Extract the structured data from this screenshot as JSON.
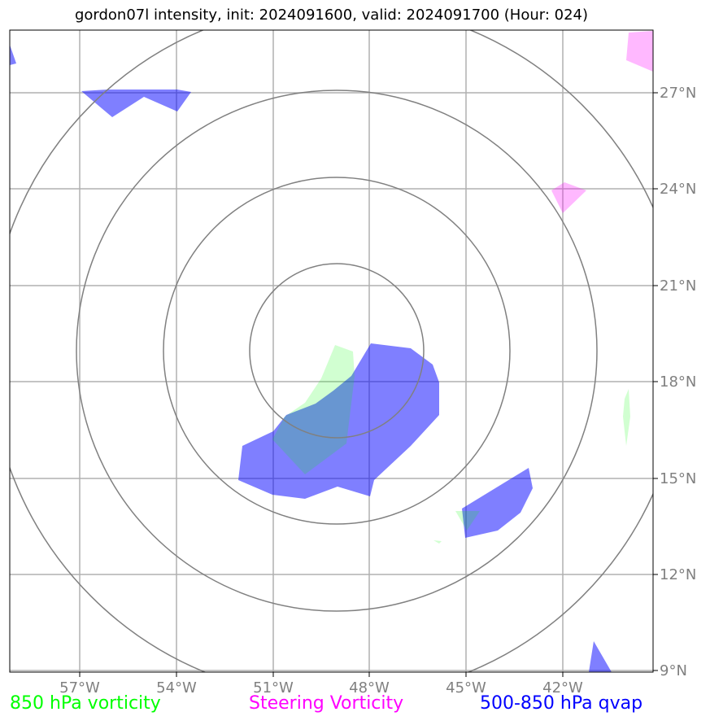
{
  "title": "gordon07l intensity, init: 2024091600, valid: 2024091700 (Hour: 024)",
  "map": {
    "lon_ticks": [
      "57°W",
      "54°W",
      "51°W",
      "48°W",
      "45°W",
      "42°W"
    ],
    "lat_ticks": [
      "27°N",
      "24°N",
      "21°N",
      "18°N",
      "15°N",
      "12°N",
      "9°N"
    ],
    "range_rings_count": 4,
    "layers": [
      {
        "name": "850 hPa vorticity",
        "color": "#00ff00"
      },
      {
        "name": "Steering Vorticity",
        "color": "#ff00ff"
      },
      {
        "name": "500-850 hPa qvap",
        "color": "#0000ff"
      }
    ]
  },
  "legend": {
    "vort850": "850 hPa vorticity",
    "steering": "Steering Vorticity",
    "qvap": "500-850 hPa qvap"
  },
  "colors": {
    "vort850": "#00ff00",
    "steering": "#ff00ff",
    "qvap": "#0000ff",
    "grid": "#b0b0b0",
    "rings": "#808080"
  }
}
